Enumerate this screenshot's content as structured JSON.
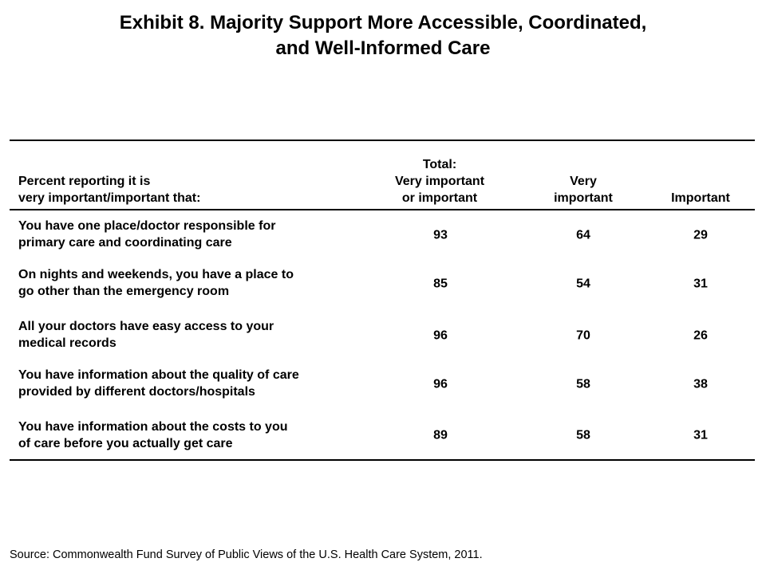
{
  "title": {
    "line1": "Exhibit 8. Majority Support More Accessible, Coordinated,",
    "line2": "and Well-Informed Care"
  },
  "table": {
    "header": {
      "label_line1": "Percent reporting it is",
      "label_line2": "very important/important that:",
      "col1_line1": "Total:",
      "col1_line2": "Very important",
      "col1_line3": "or important",
      "col2_line1": "Very",
      "col2_line2": "important",
      "col3": "Important"
    },
    "rows": [
      {
        "line1": "You have one place/doctor responsible for",
        "line2": "primary care and coordinating care",
        "total": "93",
        "very": "64",
        "important": "29"
      },
      {
        "line1": "On nights and weekends, you have a place to",
        "line2": "go other than the emergency room",
        "total": "85",
        "very": "54",
        "important": "31"
      },
      {
        "line1": "All your doctors have easy access to your",
        "line2": "medical records",
        "total": "96",
        "very": "70",
        "important": "26"
      },
      {
        "line1": "You have information about the quality of care",
        "line2": "provided by different doctors/hospitals",
        "total": "96",
        "very": "58",
        "important": "38"
      },
      {
        "line1": "You have information about the costs to you",
        "line2": "of care before you actually get care",
        "total": "89",
        "very": "58",
        "important": "31"
      }
    ]
  },
  "source": "Source: Commonwealth Fund Survey of Public Views of the U.S. Health Care System, 2011."
}
